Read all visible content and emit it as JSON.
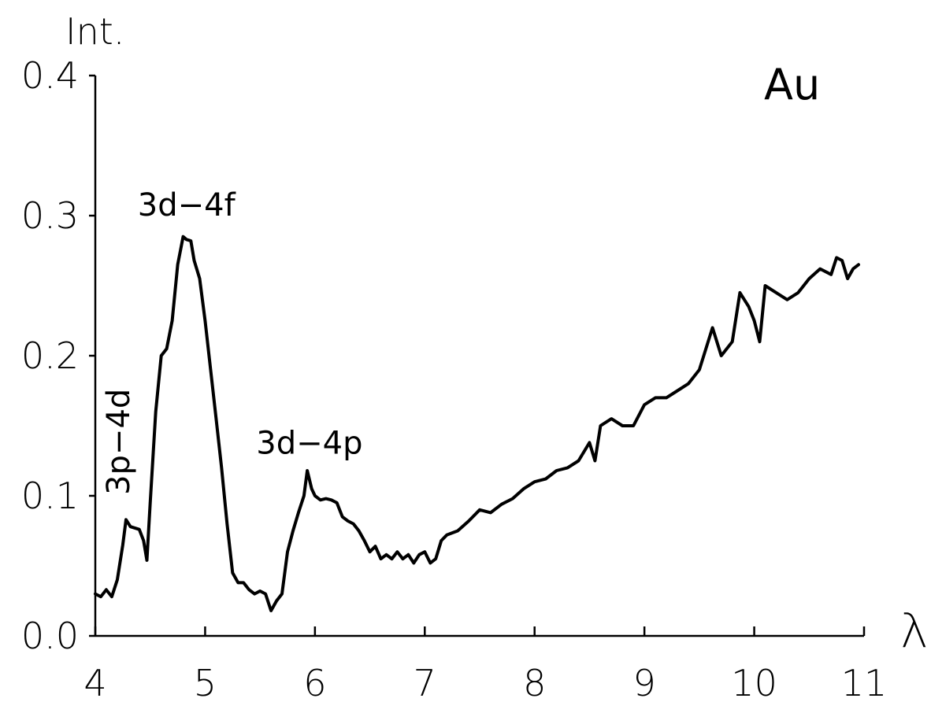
{
  "chart_data": {
    "type": "line",
    "title": "",
    "xlabel": "λ",
    "ylabel": "Int.",
    "xlim": [
      4,
      11
    ],
    "ylim": [
      0.0,
      0.4
    ],
    "grid": false,
    "x_ticks": [
      4,
      5,
      6,
      7,
      8,
      9,
      10,
      11
    ],
    "x_tick_labels": [
      "4",
      "5",
      "6",
      "7",
      "8",
      "9",
      "10",
      "11"
    ],
    "y_ticks": [
      0.0,
      0.1,
      0.2,
      0.3,
      0.4
    ],
    "y_tick_labels": [
      "0.0",
      "0.1",
      "0.2",
      "0.3",
      "0.4"
    ],
    "element_label": "Au",
    "annotations": [
      {
        "text": "3d−4f",
        "x": 4.83,
        "y": 0.29,
        "rotation": 0
      },
      {
        "text": "3d−4p",
        "x": 5.95,
        "y": 0.12,
        "rotation": 0
      },
      {
        "text": "3p−4d",
        "x": 4.31,
        "y": 0.095,
        "rotation": -90
      }
    ],
    "series": [
      {
        "x": [
          4.0,
          4.05,
          4.1,
          4.15,
          4.2,
          4.25,
          4.28,
          4.32,
          4.36,
          4.4,
          4.44,
          4.47,
          4.5,
          4.55,
          4.6,
          4.65,
          4.7,
          4.75,
          4.8,
          4.83,
          4.87,
          4.9,
          4.95,
          5.0,
          5.05,
          5.1,
          5.15,
          5.2,
          5.25,
          5.3,
          5.35,
          5.4,
          5.45,
          5.5,
          5.55,
          5.6,
          5.65,
          5.7,
          5.75,
          5.8,
          5.85,
          5.9,
          5.93,
          5.97,
          6.0,
          6.05,
          6.1,
          6.15,
          6.2,
          6.25,
          6.3,
          6.35,
          6.4,
          6.45,
          6.5,
          6.55,
          6.6,
          6.65,
          6.7,
          6.75,
          6.8,
          6.85,
          6.9,
          6.95,
          7.0,
          7.05,
          7.1,
          7.15,
          7.2,
          7.3,
          7.4,
          7.5,
          7.6,
          7.7,
          7.8,
          7.9,
          8.0,
          8.1,
          8.2,
          8.3,
          8.4,
          8.5,
          8.55,
          8.6,
          8.7,
          8.8,
          8.9,
          9.0,
          9.1,
          9.2,
          9.3,
          9.4,
          9.5,
          9.6,
          9.62,
          9.7,
          9.8,
          9.87,
          9.95,
          10.0,
          10.05,
          10.1,
          10.2,
          10.3,
          10.4,
          10.5,
          10.6,
          10.7,
          10.75,
          10.8,
          10.85,
          10.9,
          10.95
        ],
        "values": [
          0.03,
          0.028,
          0.033,
          0.028,
          0.04,
          0.065,
          0.083,
          0.078,
          0.077,
          0.076,
          0.068,
          0.054,
          0.095,
          0.16,
          0.2,
          0.205,
          0.225,
          0.265,
          0.285,
          0.283,
          0.282,
          0.268,
          0.255,
          0.225,
          0.19,
          0.155,
          0.12,
          0.08,
          0.045,
          0.038,
          0.038,
          0.033,
          0.03,
          0.032,
          0.03,
          0.018,
          0.025,
          0.03,
          0.06,
          0.075,
          0.088,
          0.1,
          0.118,
          0.105,
          0.1,
          0.097,
          0.098,
          0.097,
          0.095,
          0.085,
          0.082,
          0.08,
          0.075,
          0.068,
          0.06,
          0.064,
          0.055,
          0.058,
          0.055,
          0.06,
          0.055,
          0.058,
          0.052,
          0.058,
          0.06,
          0.052,
          0.055,
          0.068,
          0.072,
          0.075,
          0.082,
          0.09,
          0.088,
          0.094,
          0.098,
          0.105,
          0.11,
          0.112,
          0.118,
          0.12,
          0.125,
          0.138,
          0.125,
          0.15,
          0.155,
          0.15,
          0.15,
          0.165,
          0.17,
          0.17,
          0.175,
          0.18,
          0.19,
          0.215,
          0.22,
          0.2,
          0.21,
          0.245,
          0.235,
          0.225,
          0.21,
          0.25,
          0.245,
          0.24,
          0.245,
          0.255,
          0.262,
          0.258,
          0.27,
          0.268,
          0.255,
          0.262,
          0.265
        ]
      }
    ]
  }
}
